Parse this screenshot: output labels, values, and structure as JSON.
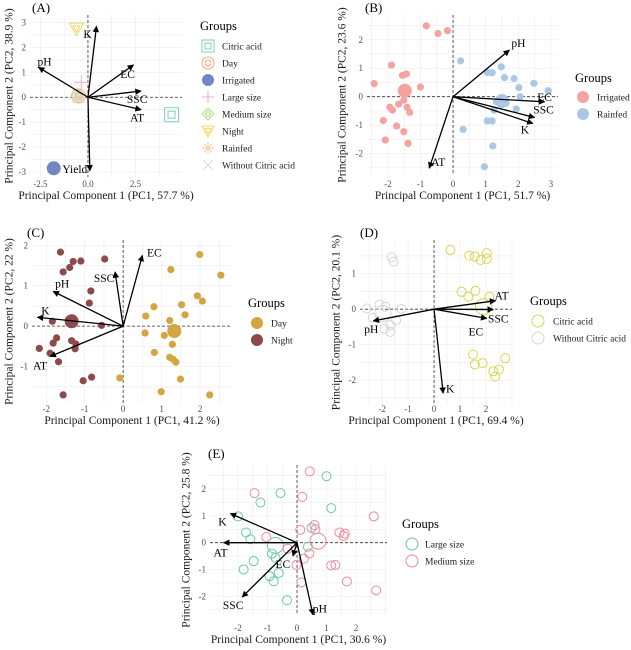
{
  "chart_data": [
    {
      "type": "scatter",
      "panel_label": "(A)",
      "xlabel": "Principal Component 1 (PC1, 57.7 %)",
      "ylabel": "Principal Component 2 (PC2, 38.9 %)",
      "xlim": [
        -3.05,
        4.95
      ],
      "ylim": [
        -3.2,
        3.3
      ],
      "x_ticks": [
        -2.5,
        0,
        2.5
      ],
      "x_tick_labels": [
        "-2.5",
        "0.0",
        "2.5"
      ],
      "y_ticks": [
        -3,
        -2,
        -1,
        0,
        1,
        2,
        3
      ],
      "y_tick_labels": [
        "-3",
        "-2",
        "-1",
        "0",
        "1",
        "2",
        "3"
      ],
      "grid": true,
      "legend_title": "Groups",
      "legend_placement": "right",
      "groups": [
        {
          "name": "Citric acid",
          "color": "#7fd1bd",
          "shape": "square-open-double",
          "points": [],
          "centroid": [
            4.4,
            -0.7
          ]
        },
        {
          "name": "Day",
          "color": "#f5a98a",
          "shape": "circle-open-double",
          "points": [],
          "centroid": [
            -0.5,
            0.05
          ]
        },
        {
          "name": "Irrigated",
          "color": "#7486c2",
          "shape": "circle-filled",
          "points": [],
          "centroid": [
            -1.8,
            -2.85
          ]
        },
        {
          "name": "Large size",
          "color": "#f2a6c6",
          "shape": "plus",
          "points": [],
          "centroid": [
            -0.35,
            0.6
          ]
        },
        {
          "name": "Medium size",
          "color": "#b9d77f",
          "shape": "diamond-open-double",
          "points": [],
          "centroid": [
            -0.5,
            0.05
          ]
        },
        {
          "name": "Night",
          "color": "#f0d860",
          "shape": "triangle-open-double",
          "points": [],
          "centroid": [
            -0.6,
            2.75
          ]
        },
        {
          "name": "Rainfed",
          "color": "#f2cc9e",
          "shape": "asterisk",
          "points": [],
          "centroid": [
            -0.5,
            0.0
          ]
        },
        {
          "name": "Without Citric acid",
          "color": "#d6d6d6",
          "shape": "cross",
          "points": [],
          "centroid": [
            -0.5,
            0.0
          ]
        }
      ],
      "arrows": [
        {
          "name": "K",
          "x": 0.45,
          "y": 2.85
        },
        {
          "name": "pH",
          "x": -2.6,
          "y": 1.2
        },
        {
          "name": "EC",
          "x": 2.4,
          "y": 1.3
        },
        {
          "name": "SSC",
          "x": 2.8,
          "y": 0.25
        },
        {
          "name": "AT",
          "x": 2.8,
          "y": -0.5
        },
        {
          "name": "Yield",
          "x": 0.1,
          "y": -2.95
        }
      ]
    },
    {
      "type": "scatter",
      "panel_label": "(B)",
      "xlabel": "Principal Component 1 (PC1, 51.7 %)",
      "ylabel": "Principal Component 2 (PC2, 23.6 %)",
      "xlim": [
        -2.64,
        3.22
      ],
      "ylim": [
        -2.75,
        2.87
      ],
      "x_ticks": [
        -2,
        -1,
        0,
        1,
        2,
        3
      ],
      "x_tick_labels": [
        "-2",
        "-1",
        "0",
        "1",
        "2",
        "3"
      ],
      "y_ticks": [
        -2,
        -1,
        0,
        1,
        2
      ],
      "y_tick_labels": [
        "-2",
        "-1",
        "0",
        "1",
        "2"
      ],
      "grid": true,
      "legend_title": "Groups",
      "legend_placement": "right",
      "groups": [
        {
          "name": "Irrigated",
          "color": "#f4a3a0",
          "shape": "circle-filled",
          "centroid": [
            -1.48,
            0.21
          ],
          "points": [
            [
              -0.82,
              2.49
            ],
            [
              -0.46,
              2.22
            ],
            [
              -0.17,
              2.32
            ],
            [
              -1.89,
              1.11
            ],
            [
              -1.55,
              0.75
            ],
            [
              -1.43,
              0.8
            ],
            [
              -2.42,
              0.46
            ],
            [
              -1.0,
              0.34
            ],
            [
              -1.51,
              -0.12
            ],
            [
              -1.67,
              -0.26
            ],
            [
              -1.94,
              -0.37
            ],
            [
              -1.86,
              -0.47
            ],
            [
              -1.41,
              -0.37
            ],
            [
              -1.33,
              -0.55
            ],
            [
              -2.14,
              -0.84
            ],
            [
              -1.73,
              -1.03
            ],
            [
              -1.51,
              -1.23
            ],
            [
              -2.08,
              -1.52
            ],
            [
              -1.38,
              -1.64
            ]
          ]
        },
        {
          "name": "Rainfed",
          "color": "#aac8e6",
          "shape": "circle-filled",
          "centroid": [
            1.5,
            -0.15
          ],
          "points": [
            [
              0.23,
              1.26
            ],
            [
              1.48,
              1.05
            ],
            [
              1.05,
              0.85
            ],
            [
              1.2,
              0.84
            ],
            [
              1.58,
              0.67
            ],
            [
              1.87,
              0.64
            ],
            [
              2.48,
              0.47
            ],
            [
              2.02,
              0.32
            ],
            [
              2.06,
              0.0
            ],
            [
              2.92,
              0.21
            ],
            [
              1.33,
              -0.18
            ],
            [
              1.63,
              -0.23
            ],
            [
              1.94,
              -0.43
            ],
            [
              1.26,
              -0.47
            ],
            [
              1.05,
              -0.85
            ],
            [
              1.2,
              -0.85
            ],
            [
              0.31,
              -1.15
            ],
            [
              1.22,
              -1.73
            ],
            [
              0.96,
              -2.46
            ]
          ]
        }
      ],
      "arrows": [
        {
          "name": "pH",
          "x": 1.73,
          "y": 1.64
        },
        {
          "name": "EC",
          "x": 2.81,
          "y": -0.18
        },
        {
          "name": "SSC",
          "x": 2.5,
          "y": -0.73
        },
        {
          "name": "K",
          "x": 2.45,
          "y": -0.94
        },
        {
          "name": "AT",
          "x": -0.73,
          "y": -2.51
        }
      ]
    },
    {
      "type": "scatter",
      "panel_label": "(C)",
      "xlabel": "Principal Component 1 (PC1, 41.2 %)",
      "ylabel": "Principal Component 2 (PC2, 22 %)",
      "xlim": [
        -2.37,
        2.83
      ],
      "ylim": [
        -1.9,
        2.13
      ],
      "x_ticks": [
        -2,
        -1,
        0,
        1,
        2
      ],
      "x_tick_labels": [
        "-2",
        "-1",
        "0",
        "1",
        "2"
      ],
      "y_ticks": [
        -1,
        0,
        1,
        2
      ],
      "y_tick_labels": [
        "-1",
        "0",
        "1",
        "2"
      ],
      "grid": true,
      "legend_title": "Groups",
      "legend_placement": "right",
      "groups": [
        {
          "name": "Day",
          "color": "#d4a540",
          "shape": "circle-filled",
          "centroid": [
            1.33,
            -0.12
          ],
          "points": [
            [
              1.99,
              1.77
            ],
            [
              1.24,
              1.4
            ],
            [
              2.54,
              1.26
            ],
            [
              1.93,
              0.75
            ],
            [
              2.06,
              0.62
            ],
            [
              1.52,
              0.53
            ],
            [
              0.8,
              0.48
            ],
            [
              1.61,
              0.28
            ],
            [
              0.59,
              0.25
            ],
            [
              1.21,
              0.14
            ],
            [
              0.57,
              -0.17
            ],
            [
              1.07,
              -0.23
            ],
            [
              1.28,
              -0.45
            ],
            [
              0.81,
              -0.65
            ],
            [
              1.21,
              -0.77
            ],
            [
              1.3,
              -0.82
            ],
            [
              1.37,
              -0.89
            ],
            [
              -0.09,
              -1.28
            ],
            [
              1.49,
              -1.31
            ],
            [
              0.99,
              -1.62
            ],
            [
              2.25,
              -1.7
            ]
          ]
        },
        {
          "name": "Night",
          "color": "#8c4a4c",
          "shape": "circle-filled",
          "centroid": [
            -1.34,
            0.12
          ],
          "points": [
            [
              -1.63,
              1.83
            ],
            [
              -1.1,
              1.61
            ],
            [
              -1.3,
              1.6
            ],
            [
              -0.48,
              1.66
            ],
            [
              -1.39,
              1.45
            ],
            [
              -1.56,
              1.34
            ],
            [
              -0.84,
              0.87
            ],
            [
              -0.88,
              0.57
            ],
            [
              -1.84,
              0.12
            ],
            [
              -0.56,
              0.02
            ],
            [
              -1.73,
              -0.29
            ],
            [
              -1.82,
              -0.42
            ],
            [
              -1.34,
              -0.36
            ],
            [
              -1.23,
              -0.44
            ],
            [
              -1.25,
              -0.56
            ],
            [
              -2.18,
              -0.55
            ],
            [
              -1.9,
              -0.67
            ],
            [
              -1.68,
              -0.88
            ],
            [
              -0.82,
              -1.26
            ],
            [
              -1.04,
              -1.35
            ],
            [
              -1.56,
              -1.7
            ]
          ]
        }
      ],
      "arrows": [
        {
          "name": "EC",
          "x": 0.5,
          "y": 1.75
        },
        {
          "name": "SSC",
          "x": -0.21,
          "y": 1.34
        },
        {
          "name": "pH",
          "x": -1.82,
          "y": 0.86
        },
        {
          "name": "K",
          "x": -2.23,
          "y": 0.22
        },
        {
          "name": "AT",
          "x": -1.9,
          "y": -0.75
        }
      ]
    },
    {
      "type": "scatter",
      "panel_label": "(D)",
      "xlabel": "Principal Component 1 (PC1, 69.4 %)",
      "ylabel": "Principal Component 2 (PC2, 20.1 %)",
      "xlim": [
        -2.85,
        3.0
      ],
      "ylim": [
        -2.7,
        1.95
      ],
      "x_ticks": [
        -2,
        -1,
        0,
        1,
        2
      ],
      "x_tick_labels": [
        "-2",
        "-1",
        "0",
        "1",
        "2"
      ],
      "y_ticks": [
        -2,
        -1,
        0,
        1
      ],
      "y_tick_labels": [
        "-2",
        "-1",
        "0",
        "1"
      ],
      "grid": true,
      "legend_title": "Groups",
      "legend_placement": "right",
      "groups": [
        {
          "name": "Citric acid",
          "color": "#d6d650",
          "shape": "circle-open",
          "centroid": [
            1.9,
            0.07
          ],
          "points": [
            [
              0.63,
              1.67
            ],
            [
              1.35,
              1.51
            ],
            [
              1.57,
              1.48
            ],
            [
              1.79,
              1.39
            ],
            [
              2.03,
              1.58
            ],
            [
              2.03,
              1.42
            ],
            [
              1.06,
              0.49
            ],
            [
              1.32,
              0.35
            ],
            [
              1.59,
              0.52
            ],
            [
              2.13,
              0.35
            ],
            [
              1.5,
              -1.28
            ],
            [
              1.57,
              -1.56
            ],
            [
              1.87,
              -1.52
            ],
            [
              2.28,
              -1.75
            ],
            [
              2.35,
              -1.9
            ],
            [
              2.5,
              -1.7
            ],
            [
              2.74,
              -1.38
            ]
          ]
        },
        {
          "name": "Without Citric acid",
          "color": "#d6d6d6",
          "shape": "circle-open",
          "centroid": [
            -1.97,
            -0.12
          ],
          "points": [
            [
              -1.63,
              1.46
            ],
            [
              -1.55,
              1.34
            ],
            [
              -2.59,
              0.02
            ],
            [
              -2.1,
              0.13
            ],
            [
              -1.87,
              0.07
            ],
            [
              -1.26,
              0.01
            ],
            [
              -2.36,
              -0.24
            ],
            [
              -1.46,
              -0.31
            ],
            [
              -1.91,
              -0.55
            ],
            [
              -1.68,
              -0.45
            ],
            [
              -1.68,
              -0.64
            ]
          ]
        }
      ],
      "arrows": [
        {
          "name": "AT",
          "x": 2.37,
          "y": 0.24
        },
        {
          "name": "SSC",
          "x": 2.28,
          "y": -0.01
        },
        {
          "name": "EC",
          "x": 2.03,
          "y": -0.26
        },
        {
          "name": "pH",
          "x": -2.34,
          "y": -0.33
        },
        {
          "name": "K",
          "x": 0.35,
          "y": -2.37
        }
      ]
    },
    {
      "type": "scatter",
      "panel_label": "(E)",
      "xlabel": "Principal Component 1 (PC1, 30.6 %)",
      "ylabel": "Principal Component 2 (PC2, 25.8 %)",
      "xlim": [
        -2.95,
        3.05
      ],
      "ylim": [
        -2.7,
        2.9
      ],
      "x_ticks": [
        -2,
        -1,
        0,
        1,
        2
      ],
      "x_tick_labels": [
        "-2",
        "-1",
        "0",
        "1",
        "2"
      ],
      "y_ticks": [
        -2,
        -1,
        0,
        1,
        2
      ],
      "y_tick_labels": [
        "-2",
        "-1",
        "0",
        "1",
        "2"
      ],
      "grid": true,
      "legend_title": "Groups",
      "legend_placement": "right",
      "groups": [
        {
          "name": "Large size",
          "color": "#66c9a4",
          "shape": "circle-open",
          "centroid": [
            -0.73,
            -0.1
          ],
          "points": [
            [
              1.0,
              2.48
            ],
            [
              -0.56,
              1.85
            ],
            [
              -1.24,
              1.5
            ],
            [
              1.16,
              1.29
            ],
            [
              -2.0,
              0.98
            ],
            [
              0.49,
              0.55
            ],
            [
              -1.73,
              0.38
            ],
            [
              -1.58,
              0.13
            ],
            [
              0.37,
              -0.15
            ],
            [
              -0.85,
              -0.41
            ],
            [
              -0.73,
              -0.56
            ],
            [
              -1.47,
              -0.69
            ],
            [
              -1.81,
              -1.0
            ],
            [
              -0.62,
              -1.13
            ],
            [
              -0.93,
              -1.25
            ],
            [
              -0.79,
              -1.44
            ],
            [
              -0.34,
              -2.15
            ]
          ]
        },
        {
          "name": "Medium size",
          "color": "#f2899a",
          "shape": "circle-open",
          "centroid": [
            0.71,
            0.06
          ],
          "points": [
            [
              0.43,
              2.66
            ],
            [
              -1.44,
              1.85
            ],
            [
              0.18,
              1.71
            ],
            [
              2.6,
              0.98
            ],
            [
              0.11,
              0.48
            ],
            [
              0.59,
              0.66
            ],
            [
              0.62,
              0.5
            ],
            [
              -1.04,
              0.21
            ],
            [
              1.44,
              0.38
            ],
            [
              1.62,
              0.34
            ],
            [
              1.58,
              0.25
            ],
            [
              -0.32,
              -0.23
            ],
            [
              0.42,
              -0.4
            ],
            [
              0.23,
              -0.6
            ],
            [
              -0.02,
              -0.83
            ],
            [
              1.16,
              -0.85
            ],
            [
              1.3,
              -0.83
            ],
            [
              0.15,
              -1.48
            ],
            [
              1.69,
              -1.45
            ],
            [
              2.68,
              -1.78
            ]
          ]
        }
      ],
      "arrows": [
        {
          "name": "K",
          "x": -2.26,
          "y": 1.09
        },
        {
          "name": "AT",
          "x": -2.49,
          "y": 0.0
        },
        {
          "name": "SSC",
          "x": -1.86,
          "y": -2.03
        },
        {
          "name": "EC",
          "x": -0.14,
          "y": -0.5
        },
        {
          "name": "pH",
          "x": 0.54,
          "y": -2.69
        }
      ]
    }
  ]
}
